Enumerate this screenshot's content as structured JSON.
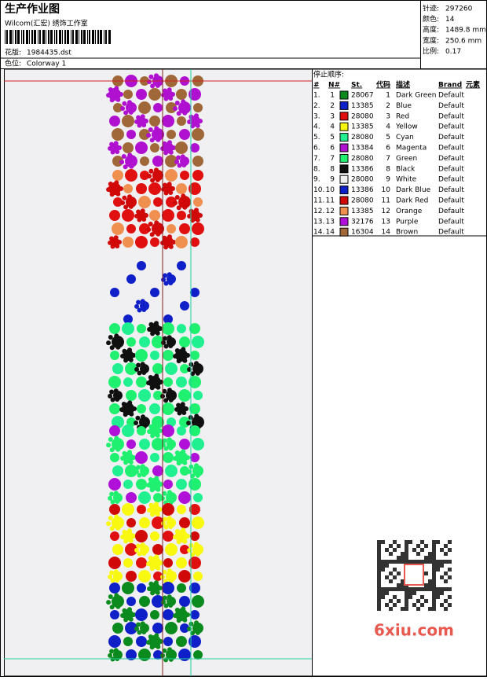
{
  "header": {
    "title": "生产作业图",
    "company": "Wilcom(汇宏) 绣饰工作室",
    "design_label": "花版:",
    "design_file": "1984435.dst",
    "colorway_label": "色位:",
    "colorway": "Colorway 1"
  },
  "stats": [
    {
      "label": "针迹:",
      "value": "297260"
    },
    {
      "label": "颜色:",
      "value": "14"
    },
    {
      "label": "高度:",
      "value": "1489.8 mm"
    },
    {
      "label": "宽度:",
      "value": "250.6 mm"
    },
    {
      "label": "比例:",
      "value": "0.17"
    }
  ],
  "table": {
    "caption": "停止顺序:",
    "columns": [
      "#",
      "N#",
      "St.",
      "代码",
      "描述",
      "Brand",
      "元素"
    ],
    "rows": [
      [
        "1.",
        "1",
        "#0b8a1e",
        "28067",
        "1",
        "Dark Green",
        "Default"
      ],
      [
        "2.",
        "2",
        "#1020c8",
        "13385",
        "2",
        "Blue",
        "Default"
      ],
      [
        "3.",
        "3",
        "#e01010",
        "28080",
        "3",
        "Red",
        "Default"
      ],
      [
        "4.",
        "4",
        "#f8f810",
        "13385",
        "4",
        "Yellow",
        "Default"
      ],
      [
        "5.",
        "5",
        "#20f090",
        "28080",
        "5",
        "Cyan",
        "Default"
      ],
      [
        "6.",
        "6",
        "#b010d0",
        "13384",
        "6",
        "Magenta",
        "Default"
      ],
      [
        "7.",
        "7",
        "#20f070",
        "28080",
        "7",
        "Green",
        "Default"
      ],
      [
        "8.",
        "8",
        "#101010",
        "13386",
        "8",
        "Black",
        "Default"
      ],
      [
        "9.",
        "9",
        "#f0f0f0",
        "28080",
        "9",
        "White",
        "Default"
      ],
      [
        "10.",
        "10",
        "#1020c8",
        "13386",
        "10",
        "Dark Blue",
        "Default"
      ],
      [
        "11.",
        "11",
        "#d00808",
        "28080",
        "11",
        "Dark Red",
        "Default"
      ],
      [
        "12.",
        "12",
        "#f09050",
        "13385",
        "12",
        "Orange",
        "Default"
      ],
      [
        "13.",
        "13",
        "#b010d8",
        "32176",
        "13",
        "Purple",
        "Default"
      ],
      [
        "14.",
        "14",
        "#a06838",
        "16304",
        "14",
        "Brown",
        "Default"
      ]
    ]
  },
  "watermark": "6xiu.com"
}
